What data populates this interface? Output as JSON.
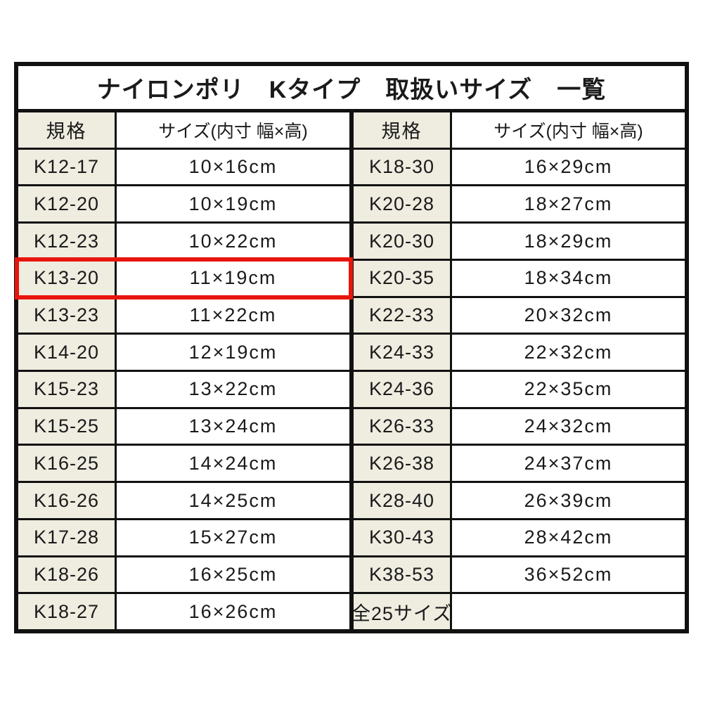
{
  "table": {
    "title": "ナイロンポリ　Kタイプ　取扱いサイズ　一覧",
    "col_headers": {
      "spec": "規格",
      "size": "サイズ(内寸 幅×高)"
    },
    "highlighted_code": "K13-20",
    "colors": {
      "highlight_border": "#e8150d",
      "spec_cell_bg": "#efece0",
      "grid_line": "#111111"
    },
    "left_rows": [
      {
        "code": "K12-17",
        "size": "10×16cm"
      },
      {
        "code": "K12-20",
        "size": "10×19cm"
      },
      {
        "code": "K12-23",
        "size": "10×22cm"
      },
      {
        "code": "K13-20",
        "size": "11×19cm"
      },
      {
        "code": "K13-23",
        "size": "11×22cm"
      },
      {
        "code": "K14-20",
        "size": "12×19cm"
      },
      {
        "code": "K15-23",
        "size": "13×22cm"
      },
      {
        "code": "K15-25",
        "size": "13×24cm"
      },
      {
        "code": "K16-25",
        "size": "14×24cm"
      },
      {
        "code": "K16-26",
        "size": "14×25cm"
      },
      {
        "code": "K17-28",
        "size": "15×27cm"
      },
      {
        "code": "K18-26",
        "size": "16×25cm"
      },
      {
        "code": "K18-27",
        "size": "16×26cm"
      }
    ],
    "right_rows": [
      {
        "code": "K18-30",
        "size": "16×29cm"
      },
      {
        "code": "K20-28",
        "size": "18×27cm"
      },
      {
        "code": "K20-30",
        "size": "18×29cm"
      },
      {
        "code": "K20-35",
        "size": "18×34cm"
      },
      {
        "code": "K22-33",
        "size": "20×32cm"
      },
      {
        "code": "K24-33",
        "size": "22×32cm"
      },
      {
        "code": "K24-36",
        "size": "22×35cm"
      },
      {
        "code": "K26-33",
        "size": "24×32cm"
      },
      {
        "code": "K26-38",
        "size": "24×37cm"
      },
      {
        "code": "K28-40",
        "size": "26×39cm"
      },
      {
        "code": "K30-43",
        "size": "28×42cm"
      },
      {
        "code": "K38-53",
        "size": "36×52cm"
      },
      {
        "code": "全25サイズ",
        "size": ""
      }
    ]
  }
}
